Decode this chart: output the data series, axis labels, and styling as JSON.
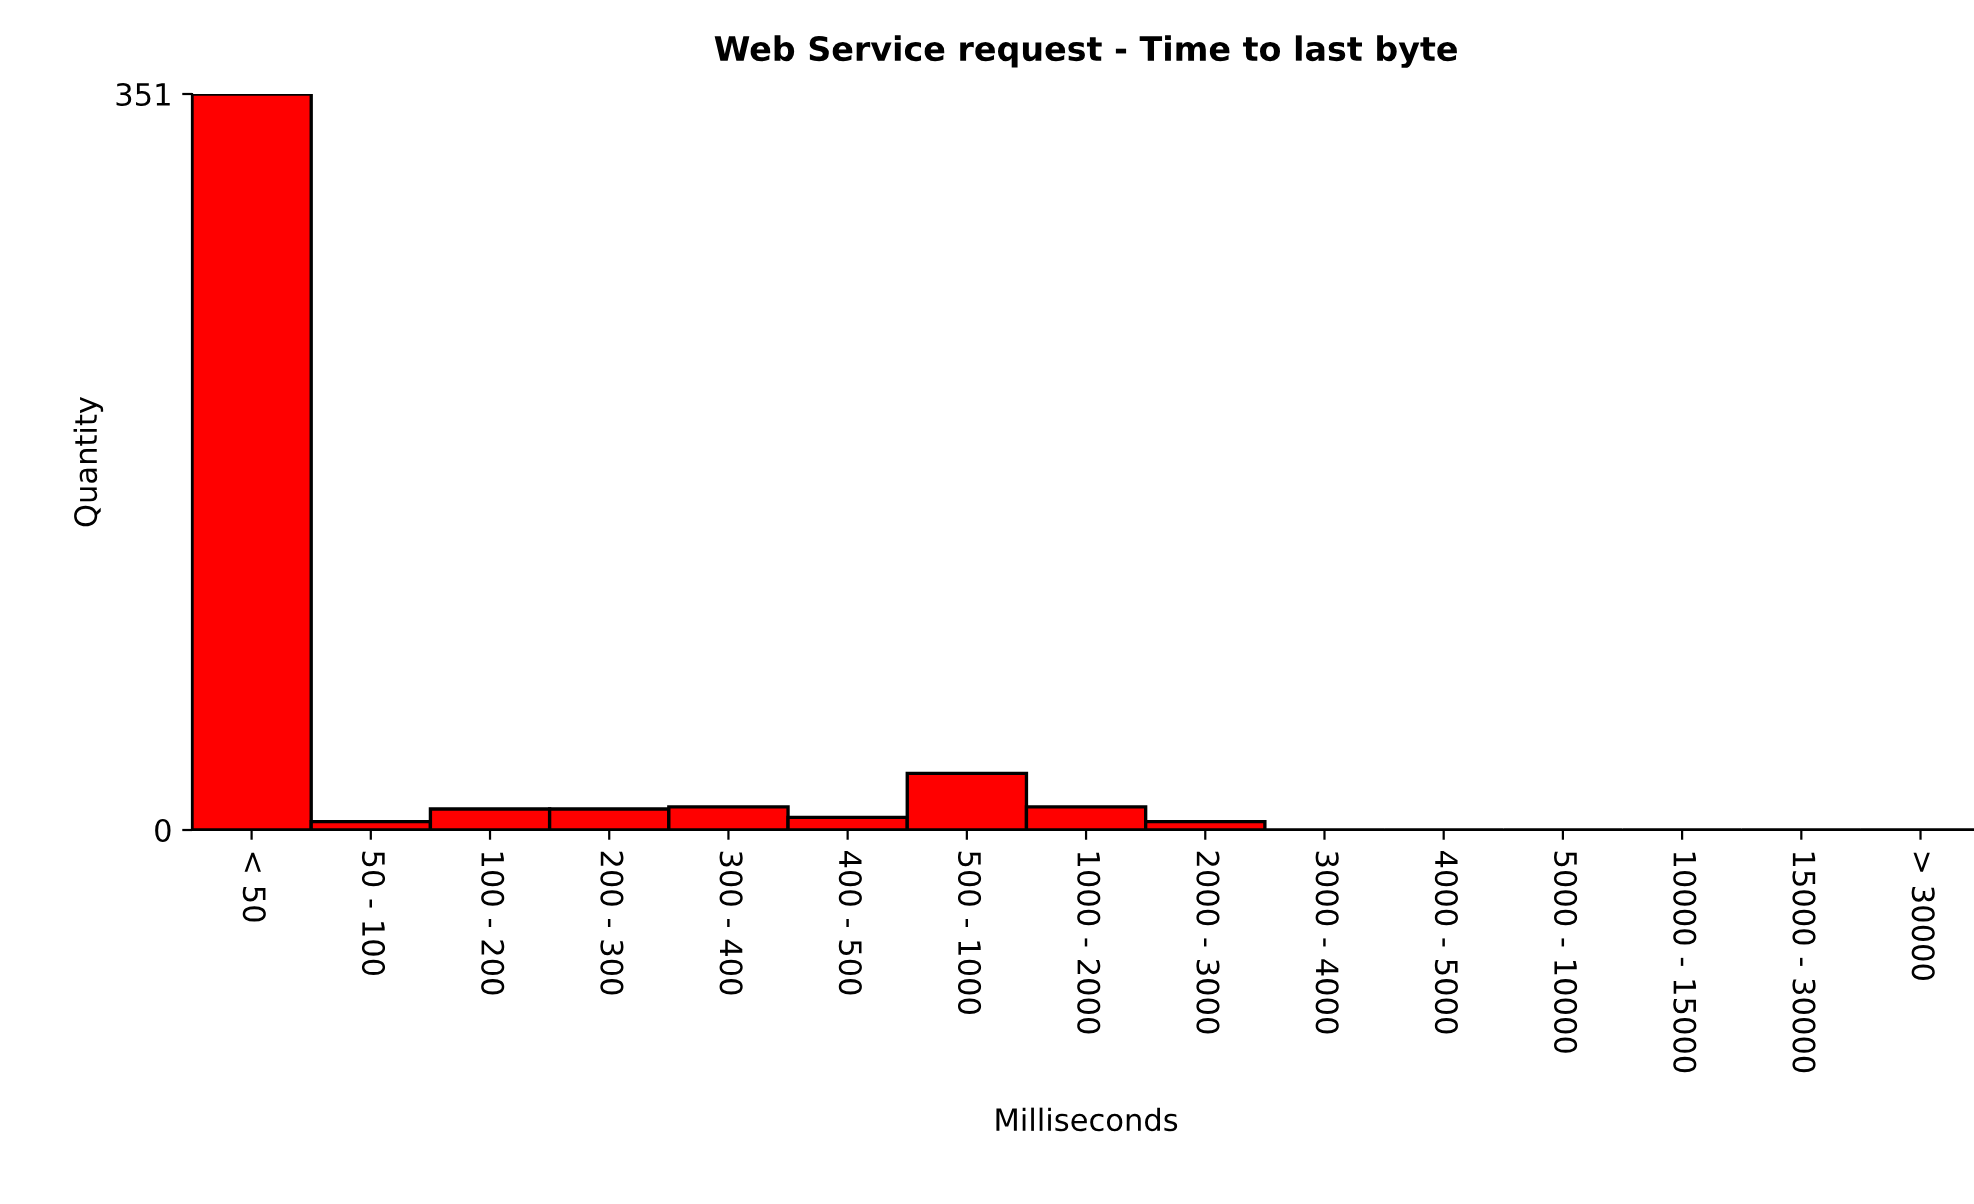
{
  "chart_data": {
    "type": "bar",
    "title": "Web Service request - Time to last byte",
    "xlabel": "Milliseconds",
    "ylabel": "Quantity",
    "categories": [
      "< 50",
      "50 - 100",
      "100 - 200",
      "200 - 300",
      "300 - 400",
      "400 - 500",
      "500 - 1000",
      "1000 - 2000",
      "2000 - 3000",
      "3000 - 4000",
      "4000 - 5000",
      "5000 - 10000",
      "10000 - 15000",
      "15000 - 30000",
      "> 30000"
    ],
    "values": [
      351,
      4,
      10,
      10,
      11,
      6,
      27,
      11,
      4,
      0,
      0,
      0,
      0,
      0,
      0
    ],
    "color": "#ff0000",
    "ylim": [
      0,
      351
    ],
    "yticks": [
      0,
      351
    ],
    "grid": false
  }
}
